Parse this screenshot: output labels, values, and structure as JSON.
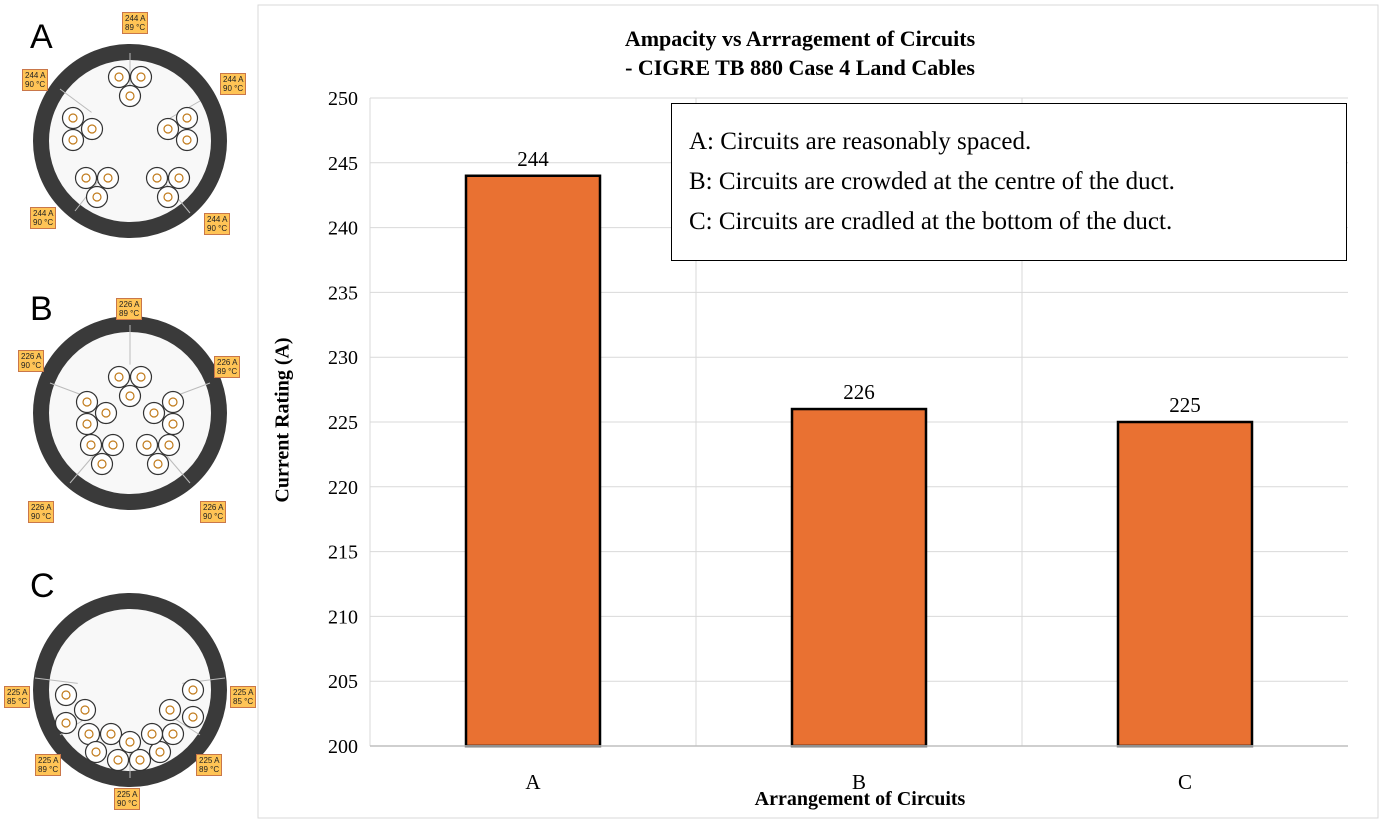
{
  "diagrams": [
    {
      "letter": "A",
      "labels": [
        {
          "current": "244 A",
          "temp": "89 °C"
        },
        {
          "current": "244 A",
          "temp": "90 °C"
        },
        {
          "current": "244 A",
          "temp": "90 °C"
        },
        {
          "current": "244 A",
          "temp": "90 °C"
        },
        {
          "current": "244 A",
          "temp": "90 °C"
        }
      ]
    },
    {
      "letter": "B",
      "labels": [
        {
          "current": "226 A",
          "temp": "89 °C"
        },
        {
          "current": "226 A",
          "temp": "90 °C"
        },
        {
          "current": "226 A",
          "temp": "89 °C"
        },
        {
          "current": "226 A",
          "temp": "90 °C"
        },
        {
          "current": "226 A",
          "temp": "90 °C"
        }
      ]
    },
    {
      "letter": "C",
      "labels": [
        {
          "current": "225 A",
          "temp": "85 °C"
        },
        {
          "current": "225 A",
          "temp": "85 °C"
        },
        {
          "current": "225 A",
          "temp": "89 °C"
        },
        {
          "current": "225 A",
          "temp": "89 °C"
        },
        {
          "current": "225 A",
          "temp": "90 °C"
        }
      ]
    }
  ],
  "chart_data": {
    "type": "bar",
    "title": "Ampacity vs Arrragement of Circuits",
    "subtitle": "- CIGRE TB 880 Case 4 Land Cables",
    "xlabel": "Arrangement of Circuits",
    "ylabel": "Current Rating (A)",
    "categories": [
      "A",
      "B",
      "C"
    ],
    "values": [
      244,
      226,
      225
    ],
    "data_labels": [
      "244",
      "226",
      "225"
    ],
    "ylim": [
      200,
      250
    ],
    "yticks": [
      200,
      205,
      210,
      215,
      220,
      225,
      230,
      235,
      240,
      245,
      250
    ],
    "grid": true,
    "bar_color": "#E97132",
    "legend_placement": "top-right",
    "annotations": [
      "A: Circuits are reasonably  spaced.",
      "B: Circuits are crowded at the centre of the duct.",
      "C: Circuits are cradled at the bottom of the duct."
    ]
  }
}
